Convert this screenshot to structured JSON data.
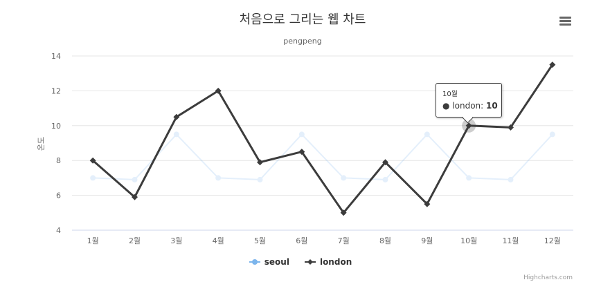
{
  "chart_data": {
    "type": "line",
    "title": "처음으로 그리는 웹 차트",
    "subtitle": "pengpeng",
    "xlabel": "",
    "ylabel": "온도",
    "categories": [
      "1월",
      "2월",
      "3월",
      "4월",
      "5월",
      "6월",
      "7월",
      "8월",
      "9월",
      "10월",
      "11월",
      "12월"
    ],
    "ylim": [
      4,
      14
    ],
    "yticks": [
      4,
      6,
      8,
      10,
      12,
      14
    ],
    "grid": true,
    "legend_position": "bottom-center",
    "series": [
      {
        "name": "seoul",
        "color": "#7cb5ec",
        "marker": "circle",
        "dimmed": true,
        "values": [
          7.0,
          6.9,
          9.5,
          7.0,
          6.9,
          9.5,
          7.0,
          6.9,
          9.5,
          7.0,
          6.9,
          9.5
        ]
      },
      {
        "name": "london",
        "color": "#3c3c3c",
        "marker": "diamond",
        "dimmed": false,
        "values": [
          8.0,
          5.9,
          10.5,
          12.0,
          7.9,
          8.5,
          5.0,
          7.9,
          5.5,
          10.0,
          9.9,
          13.5
        ]
      }
    ]
  },
  "tooltip": {
    "category": "10월",
    "series_name": "london",
    "separator": ": ",
    "value": "10"
  },
  "credits": "Highcharts.com",
  "menu_icon": "hamburger-menu-icon"
}
